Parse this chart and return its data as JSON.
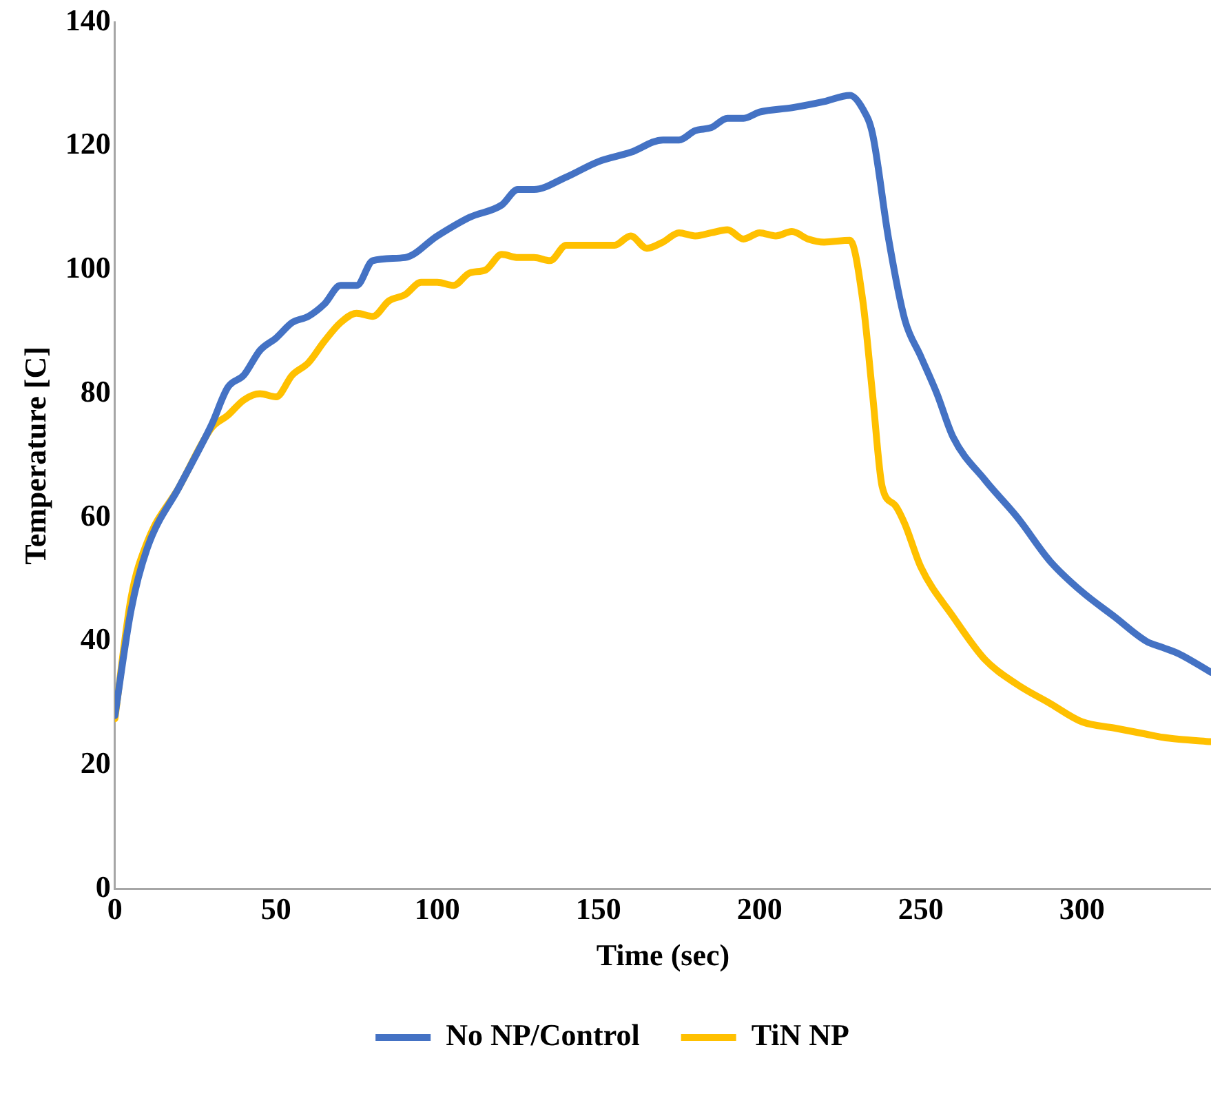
{
  "chart_data": {
    "type": "line",
    "xlabel": "Time (sec)",
    "ylabel": "Temperature [C]",
    "xlim": [
      0,
      340
    ],
    "xticks": [
      0,
      50,
      100,
      150,
      200,
      250,
      300
    ],
    "ylim": [
      0,
      140
    ],
    "yticks": [
      0,
      20,
      40,
      60,
      80,
      100,
      120,
      140
    ],
    "grid": false,
    "legend": "bottom",
    "marker": "none",
    "line_style": "solid",
    "x": [
      0,
      5,
      10,
      20,
      30,
      35,
      40,
      45,
      50,
      55,
      60,
      65,
      70,
      75,
      80,
      90,
      100,
      110,
      120,
      125,
      130,
      140,
      150,
      160,
      170,
      175,
      180,
      185,
      190,
      195,
      200,
      210,
      220,
      228,
      232,
      235,
      240,
      245,
      250,
      255,
      260,
      270,
      280,
      290,
      300,
      310,
      320,
      325,
      330,
      340
    ],
    "series": [
      {
        "name": "No NP/Control",
        "color": "#4472c4",
        "values": [
          28,
          45,
          55,
          65,
          75,
          81,
          83,
          87,
          89,
          91.5,
          92.5,
          94.5,
          97.5,
          97.5,
          101.5,
          102,
          105.5,
          108.5,
          110.5,
          113,
          113,
          115,
          117.5,
          119,
          121,
          121,
          122.5,
          123,
          124.5,
          124.5,
          125.5,
          126.2,
          127.2,
          128.2,
          126,
          122,
          105,
          92,
          86,
          80,
          73,
          66,
          60,
          53,
          48,
          44,
          40,
          39,
          38,
          35
        ]
      },
      {
        "name": "TiN NP",
        "color": "#ffc000",
        "x": [
          0,
          5,
          10,
          20,
          30,
          35,
          40,
          45,
          50,
          55,
          60,
          65,
          70,
          75,
          80,
          85,
          90,
          95,
          100,
          105,
          110,
          115,
          120,
          125,
          130,
          135,
          140,
          150,
          155,
          160,
          165,
          170,
          175,
          180,
          185,
          190,
          195,
          200,
          205,
          210,
          215,
          220,
          228,
          232,
          235,
          238,
          242,
          245,
          250,
          260,
          270,
          280,
          290,
          300,
          310,
          320,
          325,
          330,
          340
        ],
        "values": [
          27.5,
          47,
          56,
          65,
          74.5,
          76.5,
          79,
          80,
          79.5,
          83,
          85,
          88.5,
          91.5,
          93,
          92.5,
          95,
          96,
          98,
          98,
          97.5,
          99.5,
          100,
          102.5,
          102,
          102,
          101.5,
          104,
          104,
          104,
          105.5,
          103.5,
          104.5,
          106,
          105.5,
          106,
          106.5,
          105,
          106,
          105.5,
          106.2,
          105,
          104.5,
          104.8,
          95,
          80,
          65,
          62,
          59,
          52,
          44,
          37,
          33,
          30,
          27,
          26,
          25,
          24.5,
          24.2,
          23.8
        ]
      }
    ]
  }
}
